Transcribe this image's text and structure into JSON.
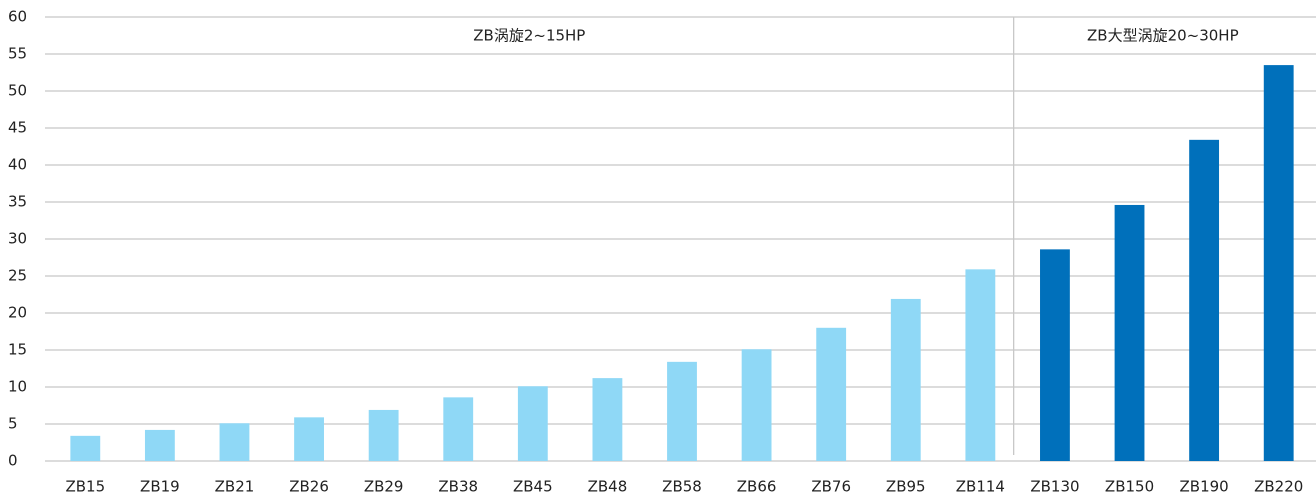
{
  "chart_data": {
    "type": "bar",
    "categories": [
      "ZB15",
      "ZB19",
      "ZB21",
      "ZB26",
      "ZB29",
      "ZB38",
      "ZB45",
      "ZB48",
      "ZB58",
      "ZB66",
      "ZB76",
      "ZB95",
      "ZB114",
      "ZB130",
      "ZB150",
      "ZB190",
      "ZB220"
    ],
    "values": [
      3.4,
      4.2,
      5.1,
      5.9,
      6.9,
      8.6,
      10.1,
      11.2,
      13.4,
      15.1,
      18,
      21.9,
      25.9,
      28.6,
      34.6,
      43.4,
      53.5
    ],
    "colors": [
      "#8fd8f6",
      "#8fd8f6",
      "#8fd8f6",
      "#8fd8f6",
      "#8fd8f6",
      "#8fd8f6",
      "#8fd8f6",
      "#8fd8f6",
      "#8fd8f6",
      "#8fd8f6",
      "#8fd8f6",
      "#8fd8f6",
      "#8fd8f6",
      "#0070bb",
      "#0070bb",
      "#0070bb",
      "#0070bb"
    ],
    "annotations": [
      "ZB涡旋2~15HP",
      "ZB大型涡旋20~30HP"
    ],
    "ylim": [
      0,
      60
    ],
    "yticks": [
      0,
      5,
      10,
      15,
      20,
      25,
      30,
      35,
      40,
      45,
      50,
      55,
      60
    ],
    "grid": true
  }
}
